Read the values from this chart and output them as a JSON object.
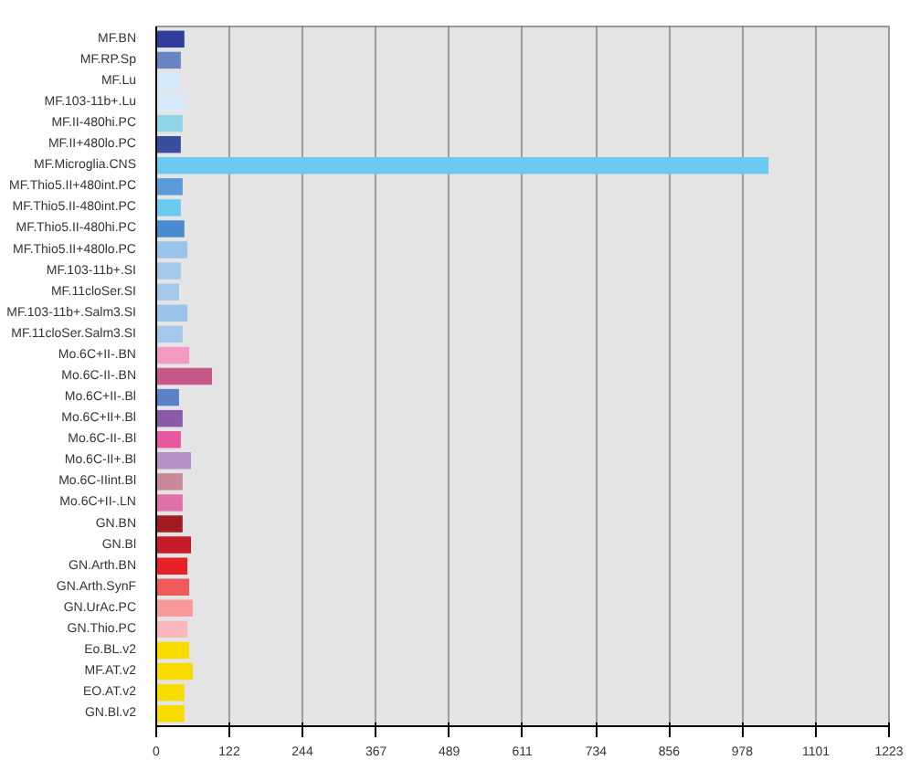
{
  "chart_data": {
    "type": "bar",
    "orientation": "horizontal",
    "categories": [
      "MF.BN",
      "MF.RP.Sp",
      "MF.Lu",
      "MF.103-11b+.Lu",
      "MF.II-480hi.PC",
      "MF.II+480lo.PC",
      "MF.Microglia.CNS",
      "MF.Thio5.II+480int.PC",
      "MF.Thio5.II-480int.PC",
      "MF.Thio5.II-480hi.PC",
      "MF.Thio5.II+480lo.PC",
      "MF.103-11b+.SI",
      "MF.11cloSer.SI",
      "MF.103-11b+.Salm3.SI",
      "MF.11cloSer.Salm3.SI",
      "Mo.6C+II-.BN",
      "Mo.6C-II-.BN",
      "Mo.6C+II-.Bl",
      "Mo.6C+II+.Bl",
      "Mo.6C-II-.Bl",
      "Mo.6C-II+.Bl",
      "Mo.6C-IIint.Bl",
      "Mo.6C+II-.LN",
      "GN.BN",
      "GN.Bl",
      "GN.Arth.BN",
      "GN.Arth.SynF",
      "GN.UrAc.PC",
      "GN.Thio.PC",
      "Eo.BL.v2",
      "MF.AT.v2",
      "EO.AT.v2",
      "GN.Bl.v2"
    ],
    "values": [
      47,
      41,
      38,
      49,
      44,
      41,
      1022,
      44,
      41,
      47,
      52,
      41,
      38,
      52,
      44,
      55,
      93,
      38,
      44,
      41,
      58,
      44,
      44,
      44,
      58,
      52,
      55,
      61,
      52,
      55,
      61,
      47,
      47
    ],
    "colors": [
      "#2e3e9a",
      "#6a85c4",
      "#d4eafa",
      "#d4eafa",
      "#90d4ea",
      "#3a4ea0",
      "#6ccaf0",
      "#5a9ad8",
      "#6ccaf0",
      "#4a8ad0",
      "#9ac4ea",
      "#a4c8ec",
      "#a4c8ec",
      "#9ac4ea",
      "#a4c8ec",
      "#f29ac4",
      "#c8588a",
      "#5a80c8",
      "#8a5aaa",
      "#e858a0",
      "#b890c8",
      "#c88a9a",
      "#e070a8",
      "#a01c22",
      "#c81c28",
      "#e82028",
      "#f05a5a",
      "#f89a9a",
      "#f8b8bc",
      "#f8dc00",
      "#f8dc00",
      "#f8dc00",
      "#f8dc00"
    ],
    "xlim": [
      0,
      1223
    ],
    "xticks": [
      0,
      122,
      244,
      367,
      489,
      611,
      734,
      856,
      978,
      1101,
      1223
    ],
    "grid": "x"
  }
}
